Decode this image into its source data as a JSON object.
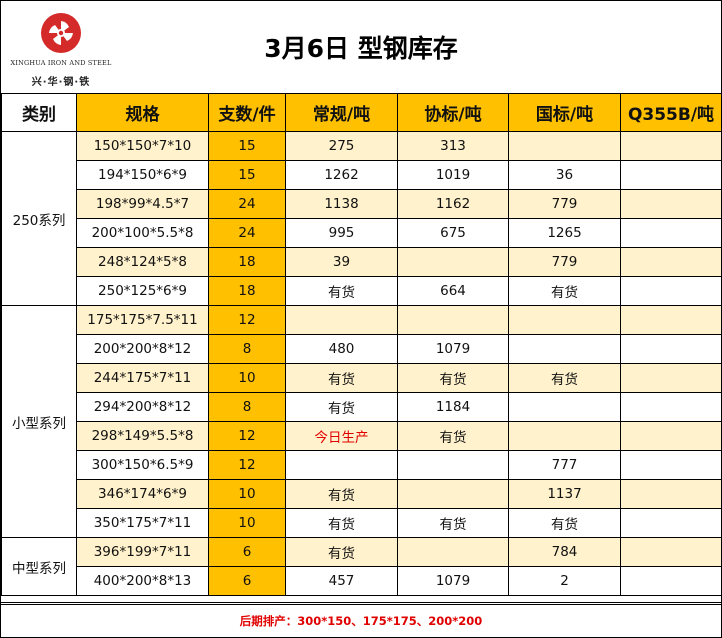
{
  "logo": {
    "english_name": "XINGHUA IRON AND STEEL",
    "chinese_name": "兴·华·钢·铁",
    "colors": {
      "mark": "#d42a2a"
    }
  },
  "title": "3月6日  型钢库存",
  "headers": {
    "category": "类别",
    "spec": "规格",
    "qty": "支数/件",
    "regular": "常规/吨",
    "association": "协标/吨",
    "national": "国标/吨",
    "q355b": "Q355B/吨"
  },
  "groups": [
    {
      "name": "250系列",
      "rows": [
        {
          "spec": "150*150*7*10",
          "qty": "15",
          "regular": "275",
          "association": "313",
          "national": "",
          "q355b": ""
        },
        {
          "spec": "194*150*6*9",
          "qty": "15",
          "regular": "1262",
          "association": "1019",
          "national": "36",
          "q355b": ""
        },
        {
          "spec": "198*99*4.5*7",
          "qty": "24",
          "regular": "1138",
          "association": "1162",
          "national": "779",
          "q355b": ""
        },
        {
          "spec": "200*100*5.5*8",
          "qty": "24",
          "regular": "995",
          "association": "675",
          "national": "1265",
          "q355b": ""
        },
        {
          "spec": "248*124*5*8",
          "qty": "18",
          "regular": "39",
          "association": "",
          "national": "779",
          "q355b": ""
        },
        {
          "spec": "250*125*6*9",
          "qty": "18",
          "regular": "有货",
          "association": "664",
          "national": "有货",
          "q355b": ""
        }
      ]
    },
    {
      "name": "小型系列",
      "rows": [
        {
          "spec": "175*175*7.5*11",
          "qty": "12",
          "regular": "",
          "association": "",
          "national": "",
          "q355b": ""
        },
        {
          "spec": "200*200*8*12",
          "qty": "8",
          "regular": "480",
          "association": "1079",
          "national": "",
          "q355b": ""
        },
        {
          "spec": "244*175*7*11",
          "qty": "10",
          "regular": "有货",
          "association": "有货",
          "national": "有货",
          "q355b": ""
        },
        {
          "spec": "294*200*8*12",
          "qty": "8",
          "regular": "有货",
          "association": "1184",
          "national": "",
          "q355b": ""
        },
        {
          "spec": "298*149*5.5*8",
          "qty": "12",
          "regular": "今日生产",
          "association": "有货",
          "national": "",
          "q355b": ""
        },
        {
          "spec": "300*150*6.5*9",
          "qty": "12",
          "regular": "",
          "association": "",
          "national": "777",
          "q355b": ""
        },
        {
          "spec": "346*174*6*9",
          "qty": "10",
          "regular": "有货",
          "association": "",
          "national": "1137",
          "q355b": ""
        },
        {
          "spec": "350*175*7*11",
          "qty": "10",
          "regular": "有货",
          "association": "有货",
          "national": "有货",
          "q355b": ""
        }
      ]
    },
    {
      "name": "中型系列",
      "rows": [
        {
          "spec": "396*199*7*11",
          "qty": "6",
          "regular": "有货",
          "association": "",
          "national": "784",
          "q355b": ""
        },
        {
          "spec": "400*200*8*13",
          "qty": "6",
          "regular": "457",
          "association": "1079",
          "national": "2",
          "q355b": ""
        }
      ]
    }
  ],
  "footer": "后期排产：300*150、175*175、200*200",
  "colors": {
    "header_fill": "#ffc000",
    "alt_row_fill": "#fff2cc",
    "highlight_text": "#e00000"
  }
}
